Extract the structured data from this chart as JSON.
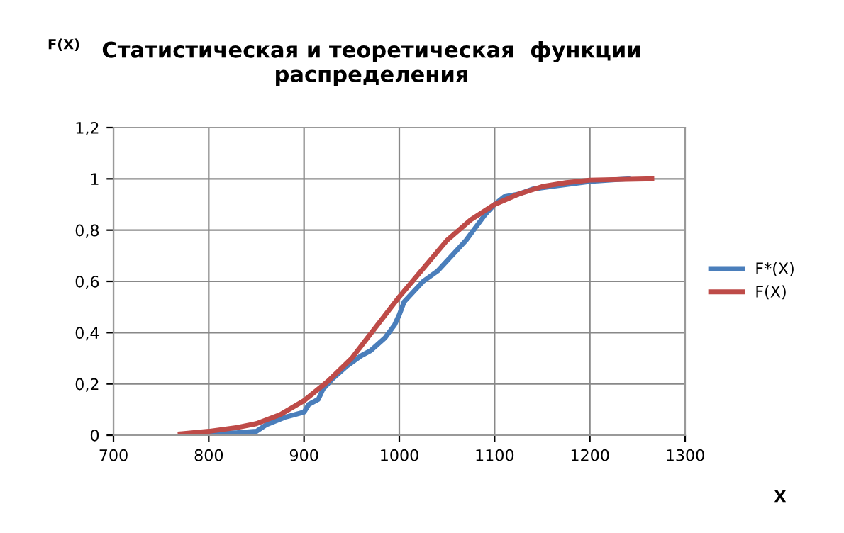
{
  "chart_data": {
    "type": "line",
    "title": "Статистическая и теоретическая  функции\nраспределения",
    "annotations": [
      "F(X)",
      "X"
    ],
    "xlim": [
      700,
      1300
    ],
    "xticks": [
      700,
      800,
      900,
      1000,
      1100,
      1200,
      1300
    ],
    "ylim": [
      0,
      1.2
    ],
    "yticks": [
      0,
      {
        "value": 0.2,
        "label": "0,2"
      },
      {
        "value": 0.4,
        "label": "0,4"
      },
      {
        "value": 0.6,
        "label": "0,6"
      },
      {
        "value": 0.8,
        "label": "0,8"
      },
      1,
      {
        "value": 1.2,
        "label": "1,2"
      }
    ],
    "grid": true,
    "legend": "right",
    "marker": "none",
    "line_style": "solid",
    "series": [
      {
        "name": "F*(X)",
        "color": "#4a7ebb",
        "x": [
          790,
          830,
          850,
          860,
          880,
          890,
          900,
          905,
          915,
          920,
          930,
          945,
          960,
          970,
          985,
          995,
          1000,
          1005,
          1015,
          1025,
          1040,
          1050,
          1060,
          1070,
          1080,
          1090,
          1100,
          1110,
          1125,
          1140,
          1160,
          1180,
          1200,
          1240
        ],
        "values": [
          0.005,
          0.01,
          0.015,
          0.04,
          0.07,
          0.08,
          0.09,
          0.12,
          0.14,
          0.18,
          0.22,
          0.27,
          0.31,
          0.33,
          0.38,
          0.43,
          0.47,
          0.52,
          0.56,
          0.6,
          0.64,
          0.68,
          0.72,
          0.76,
          0.81,
          0.86,
          0.9,
          0.93,
          0.94,
          0.96,
          0.97,
          0.98,
          0.99,
          1.0
        ]
      },
      {
        "name": "F(X)",
        "color": "#be4b48",
        "x": [
          770,
          800,
          830,
          850,
          875,
          900,
          925,
          950,
          975,
          1000,
          1025,
          1050,
          1075,
          1100,
          1125,
          1150,
          1175,
          1200,
          1265
        ],
        "values": [
          0.005,
          0.015,
          0.03,
          0.045,
          0.08,
          0.135,
          0.21,
          0.3,
          0.42,
          0.54,
          0.65,
          0.76,
          0.84,
          0.9,
          0.94,
          0.97,
          0.985,
          0.995,
          1.0
        ]
      }
    ]
  }
}
